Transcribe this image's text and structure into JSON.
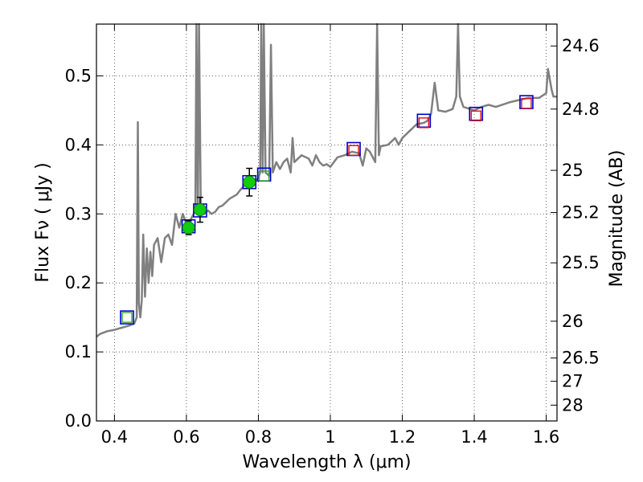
{
  "chart_data": {
    "type": "scatter",
    "xlabel": "Wavelength  λ (μm)",
    "ylabel": "Flux  Fν  ( μJy )",
    "ylabel_right": "Magnitude (AB)",
    "xlim": [
      0.35,
      1.63
    ],
    "ylim": [
      0.0,
      0.575
    ],
    "x_ticks": [
      0.4,
      0.6,
      0.8,
      1.0,
      1.2,
      1.4,
      1.6
    ],
    "x_tick_labels": [
      "0.4",
      "0.6",
      "0.8",
      "1",
      "1.2",
      "1.4",
      "1.6"
    ],
    "y_ticks": [
      0.0,
      0.1,
      0.2,
      0.3,
      0.4,
      0.5
    ],
    "y_tick_labels": [
      "0.0",
      "0.1",
      "0.2",
      "0.3",
      "0.4",
      "0.5"
    ],
    "right_ticks": [
      {
        "flux": 0.5433,
        "label": "24.6"
      },
      {
        "flux": 0.4519,
        "label": "24.8"
      },
      {
        "flux": 0.3631,
        "label": "25"
      },
      {
        "flux": 0.302,
        "label": "25.2"
      },
      {
        "flux": 0.2291,
        "label": "25.5"
      },
      {
        "flux": 0.1445,
        "label": "26"
      },
      {
        "flux": 0.0912,
        "label": "26.5"
      },
      {
        "flux": 0.0575,
        "label": "27"
      },
      {
        "flux": 0.0229,
        "label": "28"
      }
    ],
    "grid": true,
    "template_spectrum": {
      "color": "#808080",
      "points": [
        [
          0.35,
          0.122
        ],
        [
          0.36,
          0.126
        ],
        [
          0.38,
          0.13
        ],
        [
          0.4,
          0.132
        ],
        [
          0.42,
          0.135
        ],
        [
          0.44,
          0.138
        ],
        [
          0.455,
          0.141
        ],
        [
          0.462,
          0.15
        ],
        [
          0.465,
          0.433
        ],
        [
          0.468,
          0.17
        ],
        [
          0.472,
          0.15
        ],
        [
          0.476,
          0.175
        ],
        [
          0.48,
          0.27
        ],
        [
          0.485,
          0.18
        ],
        [
          0.49,
          0.25
        ],
        [
          0.495,
          0.2
        ],
        [
          0.5,
          0.245
        ],
        [
          0.505,
          0.21
        ],
        [
          0.51,
          0.255
        ],
        [
          0.52,
          0.265
        ],
        [
          0.53,
          0.23
        ],
        [
          0.54,
          0.265
        ],
        [
          0.55,
          0.27
        ],
        [
          0.56,
          0.255
        ],
        [
          0.57,
          0.3
        ],
        [
          0.58,
          0.28
        ],
        [
          0.59,
          0.3
        ],
        [
          0.6,
          0.285
        ],
        [
          0.61,
          0.29
        ],
        [
          0.62,
          0.3
        ],
        [
          0.625,
          0.31
        ],
        [
          0.628,
          0.575
        ],
        [
          0.632,
          0.3
        ],
        [
          0.635,
          0.575
        ],
        [
          0.64,
          0.31
        ],
        [
          0.65,
          0.3
        ],
        [
          0.66,
          0.305
        ],
        [
          0.67,
          0.3
        ],
        [
          0.68,
          0.303
        ],
        [
          0.69,
          0.31
        ],
        [
          0.7,
          0.312
        ],
        [
          0.72,
          0.322
        ],
        [
          0.74,
          0.328
        ],
        [
          0.75,
          0.335
        ],
        [
          0.76,
          0.34
        ],
        [
          0.77,
          0.345
        ],
        [
          0.78,
          0.348
        ],
        [
          0.79,
          0.345
        ],
        [
          0.8,
          0.352
        ],
        [
          0.805,
          0.36
        ],
        [
          0.808,
          0.575
        ],
        [
          0.812,
          0.36
        ],
        [
          0.815,
          0.575
        ],
        [
          0.82,
          0.36
        ],
        [
          0.83,
          0.355
        ],
        [
          0.835,
          0.545
        ],
        [
          0.84,
          0.36
        ],
        [
          0.85,
          0.375
        ],
        [
          0.86,
          0.365
        ],
        [
          0.87,
          0.375
        ],
        [
          0.88,
          0.38
        ],
        [
          0.89,
          0.36
        ],
        [
          0.895,
          0.41
        ],
        [
          0.9,
          0.375
        ],
        [
          0.92,
          0.385
        ],
        [
          0.94,
          0.38
        ],
        [
          0.95,
          0.37
        ],
        [
          0.96,
          0.385
        ],
        [
          0.97,
          0.375
        ],
        [
          0.98,
          0.37
        ],
        [
          0.99,
          0.372
        ],
        [
          1.0,
          0.368
        ],
        [
          1.02,
          0.382
        ],
        [
          1.04,
          0.385
        ],
        [
          1.06,
          0.39
        ],
        [
          1.08,
          0.388
        ],
        [
          1.09,
          0.37
        ],
        [
          1.1,
          0.395
        ],
        [
          1.11,
          0.39
        ],
        [
          1.12,
          0.38
        ],
        [
          1.125,
          0.375
        ],
        [
          1.13,
          0.575
        ],
        [
          1.135,
          0.385
        ],
        [
          1.14,
          0.398
        ],
        [
          1.16,
          0.4
        ],
        [
          1.18,
          0.41
        ],
        [
          1.19,
          0.4
        ],
        [
          1.2,
          0.41
        ],
        [
          1.22,
          0.42
        ],
        [
          1.24,
          0.43
        ],
        [
          1.26,
          0.432
        ],
        [
          1.27,
          0.435
        ],
        [
          1.28,
          0.445
        ],
        [
          1.29,
          0.49
        ],
        [
          1.3,
          0.45
        ],
        [
          1.32,
          0.448
        ],
        [
          1.34,
          0.452
        ],
        [
          1.35,
          0.47
        ],
        [
          1.355,
          0.575
        ],
        [
          1.36,
          0.47
        ],
        [
          1.37,
          0.455
        ],
        [
          1.4,
          0.45
        ],
        [
          1.42,
          0.455
        ],
        [
          1.44,
          0.458
        ],
        [
          1.46,
          0.455
        ],
        [
          1.5,
          0.462
        ],
        [
          1.55,
          0.468
        ],
        [
          1.58,
          0.468
        ],
        [
          1.6,
          0.475
        ],
        [
          1.605,
          0.51
        ],
        [
          1.61,
          0.495
        ],
        [
          1.615,
          0.48
        ],
        [
          1.62,
          0.47
        ],
        [
          1.63,
          0.47
        ]
      ]
    },
    "model_photometry": [
      {
        "x": 0.435,
        "y": 0.15
      },
      {
        "x": 0.606,
        "y": 0.282
      },
      {
        "x": 0.638,
        "y": 0.305
      },
      {
        "x": 0.775,
        "y": 0.346
      },
      {
        "x": 0.816,
        "y": 0.357
      },
      {
        "x": 1.065,
        "y": 0.394
      },
      {
        "x": 1.26,
        "y": 0.435
      },
      {
        "x": 1.405,
        "y": 0.445
      },
      {
        "x": 1.545,
        "y": 0.462
      }
    ],
    "observed_points": [
      {
        "x": 0.435,
        "y": 0.15,
        "kind": "square",
        "color": "#33aa33"
      },
      {
        "x": 0.606,
        "y": 0.28,
        "err": 0.01,
        "kind": "circle",
        "color": "#11cc11"
      },
      {
        "x": 0.638,
        "y": 0.306,
        "err": 0.018,
        "kind": "circle",
        "color": "#11cc11"
      },
      {
        "x": 0.775,
        "y": 0.346,
        "err": 0.02,
        "kind": "circle",
        "color": "#11cc11"
      },
      {
        "x": 0.816,
        "y": 0.355,
        "kind": "square",
        "color": "#33aa33"
      },
      {
        "x": 1.065,
        "y": 0.392,
        "kind": "square",
        "color": "#dd1111"
      },
      {
        "x": 1.26,
        "y": 0.432,
        "kind": "square",
        "color": "#dd1111"
      },
      {
        "x": 1.405,
        "y": 0.442,
        "kind": "square",
        "color": "#dd1111"
      },
      {
        "x": 1.545,
        "y": 0.46,
        "kind": "square",
        "color": "#dd1111"
      }
    ],
    "model_marker_color": "#0000cc"
  }
}
